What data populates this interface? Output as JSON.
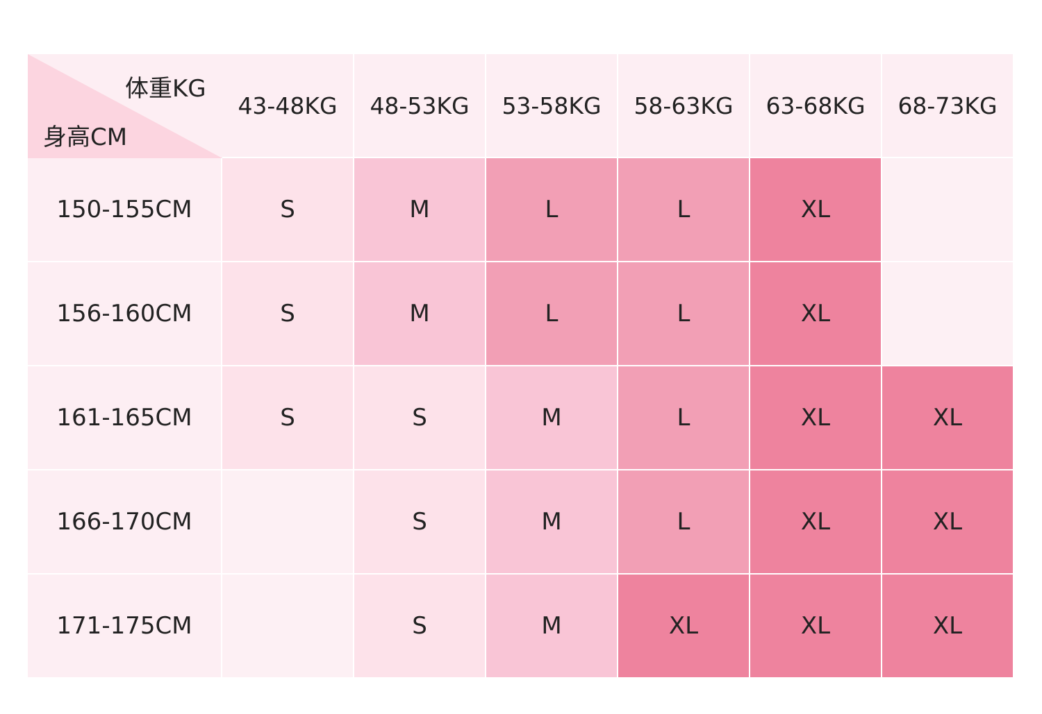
{
  "table": {
    "corner": {
      "weight_label": "体重KG",
      "height_label": "身高CM"
    },
    "columns": [
      "43-48KG",
      "48-53KG",
      "53-58KG",
      "58-63KG",
      "63-68KG",
      "68-73KG"
    ],
    "rows": [
      {
        "label": "150-155CM",
        "cells": [
          "S",
          "M",
          "L",
          "L",
          "XL",
          null
        ]
      },
      {
        "label": "156-160CM",
        "cells": [
          "S",
          "M",
          "L",
          "L",
          "XL",
          null
        ]
      },
      {
        "label": "161-165CM",
        "cells": [
          "S",
          "S",
          "M",
          "L",
          "XL",
          "XL"
        ]
      },
      {
        "label": "166-170CM",
        "cells": [
          null,
          "S",
          "M",
          "L",
          "XL",
          "XL"
        ]
      },
      {
        "label": "171-175CM",
        "cells": [
          null,
          "S",
          "M",
          "XL",
          "XL",
          "XL"
        ]
      }
    ],
    "size_colors": {
      "S": "#fde2ea",
      "M": "#f9c5d6",
      "L": "#f29fb5",
      "XL": "#ee839e"
    }
  }
}
